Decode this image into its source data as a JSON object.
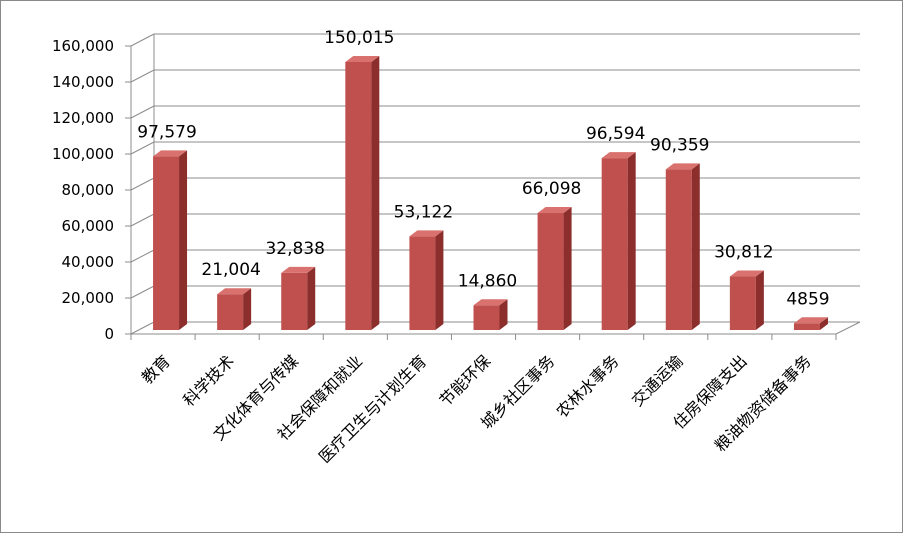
{
  "chart_data": {
    "type": "bar",
    "title": "",
    "xlabel": "",
    "ylabel": "",
    "categories": [
      "教育",
      "科学技术",
      "文化体育与传媒",
      "社会保障和就业",
      "医疗卫生与计划生育",
      "节能环保",
      "城乡社区事务",
      "农林水事务",
      "交通运输",
      "住房保障支出",
      "粮油物资储备事务"
    ],
    "values": [
      97579,
      21004,
      32838,
      150015,
      53122,
      14860,
      66098,
      96594,
      90359,
      30812,
      4859
    ],
    "data_labels": [
      "97,579",
      "21,004",
      "32,838",
      "150,015",
      "53,122",
      "14,860",
      "66,098",
      "96,594",
      "90,359",
      "30,812",
      "4859"
    ],
    "ylim": [
      0,
      160000
    ],
    "yticks": [
      0,
      20000,
      40000,
      60000,
      80000,
      100000,
      120000,
      140000,
      160000
    ],
    "ytick_labels": [
      "0",
      "20,000",
      "40,000",
      "60,000",
      "80,000",
      "100,000",
      "120,000",
      "140,000",
      "160,000"
    ],
    "grid": true,
    "legend": "none",
    "style": "3d-column",
    "colors": {
      "bar_front": "#c0504d",
      "bar_side": "#8b2e2c",
      "bar_top": "#d9716e",
      "grid": "#8c8c8c",
      "text": "#000000"
    }
  }
}
